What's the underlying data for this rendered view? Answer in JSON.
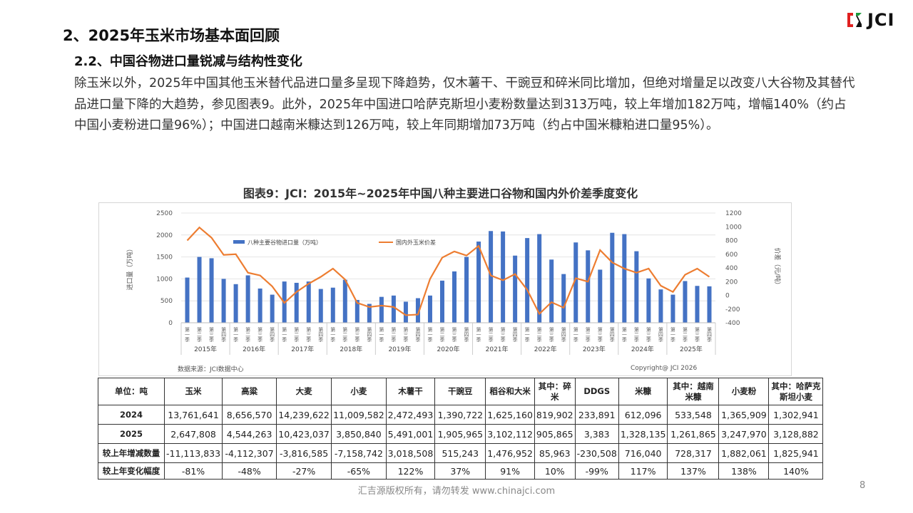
{
  "heading": "2、2025年玉米市场基本面回顾",
  "subheading": "2.2、中国谷物进口量锐减与结构性变化",
  "paragraph": "除玉米以外，2025年中国其他玉米替代品进口量多呈现下降趋势，仅木薯干、干豌豆和碎米同比增加，但绝对增量足以改变八大谷物及其替代品进口量下降的大趋势，参见图表9。此外，2025年中国进口哈萨克斯坦小麦粉数量达到313万吨，较上年增加182万吨，增幅140%（约占中国小麦粉进口量96%）；中国进口越南米糠达到126万吨，较上年同期增加73万吨（约占中国米糠粕进口量95%）。",
  "logo": "JCI",
  "chart_title": "图表9：JCI：2015年~2025年中国八种主要进口谷物和国内外价差季度变化",
  "chart_data": {
    "type": "bar+line",
    "years": [
      "2015年",
      "2016年",
      "2017年",
      "2018年",
      "2019年",
      "2020年",
      "2021年",
      "2022年",
      "2023年",
      "2024年",
      "2025年"
    ],
    "quarters": [
      "第一季",
      "第二季",
      "第三季",
      "第四季"
    ],
    "series": [
      {
        "name": "八种主要谷物进口量（万吨）",
        "type": "bar",
        "axis": "left",
        "color": "#4472c4",
        "values": [
          1030,
          1500,
          1470,
          1000,
          880,
          1080,
          780,
          640,
          940,
          910,
          940,
          770,
          800,
          980,
          520,
          430,
          590,
          620,
          480,
          560,
          620,
          960,
          1170,
          1500,
          1850,
          2090,
          2080,
          1530,
          1930,
          2020,
          1440,
          1110,
          1830,
          1650,
          1210,
          2050,
          2020,
          1630,
          1010,
          760,
          640,
          950,
          840,
          830
        ]
      },
      {
        "name": "国内外玉米价差",
        "type": "line",
        "axis": "right",
        "color": "#ed7d31",
        "values": [
          800,
          990,
          840,
          590,
          600,
          330,
          290,
          130,
          -110,
          50,
          170,
          270,
          390,
          230,
          -110,
          -170,
          -150,
          -170,
          -290,
          -280,
          240,
          550,
          640,
          580,
          720,
          290,
          220,
          310,
          80,
          -270,
          -100,
          -180,
          250,
          200,
          660,
          480,
          390,
          330,
          390,
          140,
          50,
          300,
          390,
          270
        ]
      }
    ],
    "ylabel_left": "进口量（万吨）",
    "ylabel_right": "价差（元/吨）",
    "ylim_left": [
      0,
      2500
    ],
    "yticks_left": [
      "0",
      "500",
      "1000",
      "1500",
      "2000",
      "2500"
    ],
    "ylim_right": [
      -400,
      1200
    ],
    "yticks_right": [
      "-400",
      "-200",
      "0",
      "200",
      "400",
      "600",
      "800",
      "1000",
      "1200"
    ],
    "legend_position": "top",
    "source": "数据来源：JCI数据中心",
    "copyright": "Copyright@ JCI 2026"
  },
  "table": {
    "header": [
      "单位：吨",
      "玉米",
      "高粱",
      "大麦",
      "小麦",
      "木薯干",
      "干豌豆",
      "稻谷和大米",
      "其中：碎米",
      "DDGS",
      "米糠",
      "其中：越南米糠",
      "小麦粉",
      "其中：哈萨克斯坦小麦"
    ],
    "rows": [
      [
        "2024",
        "13,761,641",
        "8,656,570",
        "14,239,622",
        "11,009,582",
        "2,472,493",
        "1,390,722",
        "1,625,160",
        "819,902",
        "233,891",
        "612,096",
        "533,548",
        "1,365,909",
        "1,302,941"
      ],
      [
        "2025",
        "2,647,808",
        "4,544,263",
        "10,423,037",
        "3,850,840",
        "5,491,001",
        "1,905,965",
        "3,102,112",
        "905,865",
        "3,383",
        "1,328,135",
        "1,261,865",
        "3,247,970",
        "3,128,882"
      ],
      [
        "较上年增减数量",
        "-11,113,833",
        "-4,112,307",
        "-3,816,585",
        "-7,158,742",
        "3,018,508",
        "515,243",
        "1,476,952",
        "85,963",
        "-230,508",
        "716,040",
        "728,317",
        "1,882,061",
        "1,825,941"
      ],
      [
        "较上年变化幅度",
        "-81%",
        "-48%",
        "-27%",
        "-65%",
        "122%",
        "37%",
        "91%",
        "10%",
        "-99%",
        "117%",
        "137%",
        "138%",
        "140%"
      ]
    ]
  },
  "footer": "汇吉源版权所有，请勿转发 www.chinajci.com",
  "page_number": "8"
}
